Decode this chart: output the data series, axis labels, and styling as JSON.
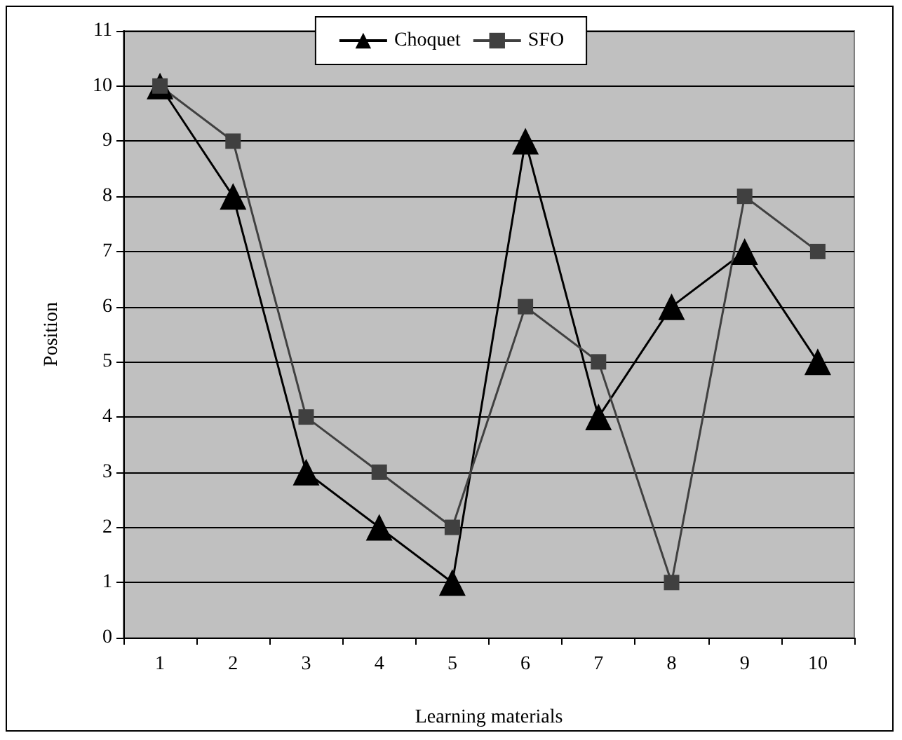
{
  "chart_data": {
    "type": "line",
    "xlabel": "Learning materials",
    "ylabel": "Position",
    "categories": [
      "1",
      "2",
      "3",
      "4",
      "5",
      "6",
      "7",
      "8",
      "9",
      "10"
    ],
    "series": [
      {
        "name": "Choquet",
        "color": "#000000",
        "marker": "triangle",
        "values": [
          10,
          8,
          3,
          2,
          1,
          9,
          4,
          6,
          7,
          5
        ]
      },
      {
        "name": "SFO",
        "color": "#404040",
        "marker": "square",
        "values": [
          10,
          9,
          4,
          3,
          2,
          6,
          5,
          1,
          8,
          7
        ]
      }
    ],
    "ylim": [
      0,
      11
    ],
    "yticks": [
      0,
      1,
      2,
      3,
      4,
      5,
      6,
      7,
      8,
      9,
      10,
      11
    ],
    "grid": "y",
    "legend": "top"
  }
}
